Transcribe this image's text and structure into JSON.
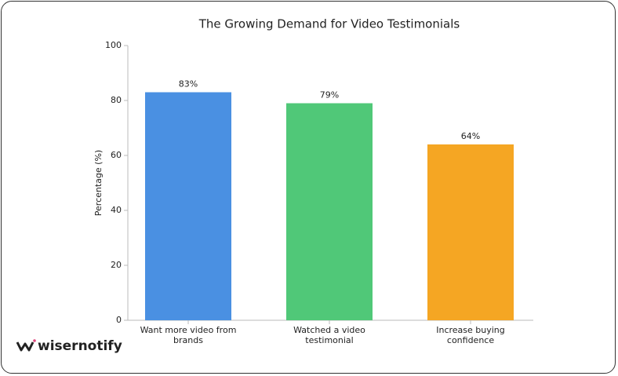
{
  "chart_data": {
    "type": "bar",
    "title": "The Growing Demand for Video Testimonials",
    "ylabel": "Percentage (%)",
    "categories": [
      "Want more video from brands",
      "Watched a video testimonial",
      "Increase buying confidence"
    ],
    "values": [
      83,
      79,
      64
    ],
    "value_labels": [
      "83%",
      "79%",
      "64%"
    ],
    "colors": [
      "#4a90e2",
      "#50c878",
      "#f5a623"
    ],
    "ylim": [
      0,
      100
    ],
    "yticks": [
      0,
      20,
      40,
      60,
      80,
      100
    ],
    "grid": false
  },
  "watermark": "wisernotify"
}
